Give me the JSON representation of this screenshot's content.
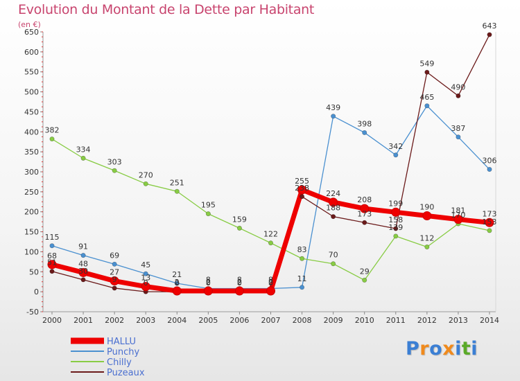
{
  "chart_data": {
    "type": "line",
    "title": "Evolution du Montant de la Dette par Habitant",
    "unit_label": "(en €)",
    "x": [
      "2000",
      "2001",
      "2002",
      "2003",
      "2004",
      "2005",
      "2006",
      "2007",
      "2008",
      "2009",
      "2010",
      "2011",
      "2012",
      "2013",
      "2014"
    ],
    "yticks": [
      -50,
      0,
      50,
      100,
      150,
      200,
      250,
      300,
      350,
      400,
      450,
      500,
      550,
      600,
      650
    ],
    "ylim": [
      -50,
      650
    ],
    "grid": false,
    "legend_position": "bottom-left",
    "series": [
      {
        "name": "HALLU",
        "color": "#ee0000",
        "values": [
          68,
          48,
          27,
          13,
          2,
          2,
          2,
          2,
          255,
          224,
          208,
          199,
          190,
          181,
          173
        ]
      },
      {
        "name": "Punchy",
        "color": "#4a90d0",
        "values": [
          115,
          91,
          69,
          45,
          21,
          8,
          8,
          8,
          11,
          439,
          398,
          342,
          465,
          387,
          306
        ]
      },
      {
        "name": "Chilly",
        "color": "#88cc44",
        "values": [
          382,
          334,
          303,
          270,
          251,
          195,
          159,
          122,
          83,
          70,
          29,
          139,
          112,
          170,
          153
        ]
      },
      {
        "name": "Puzeaux",
        "color": "#6b1a1a",
        "values": [
          51,
          30,
          9,
          0,
          0,
          0,
          0,
          0,
          238,
          188,
          173,
          158,
          549,
          490,
          643
        ]
      }
    ]
  },
  "logo": {
    "text": "Proxiti",
    "colors": [
      "#3b7fd4",
      "#f08a1c",
      "#3b7fd4",
      "#f08a1c",
      "#3b7fd4",
      "#5aaa28",
      "#3b7fd4"
    ]
  }
}
